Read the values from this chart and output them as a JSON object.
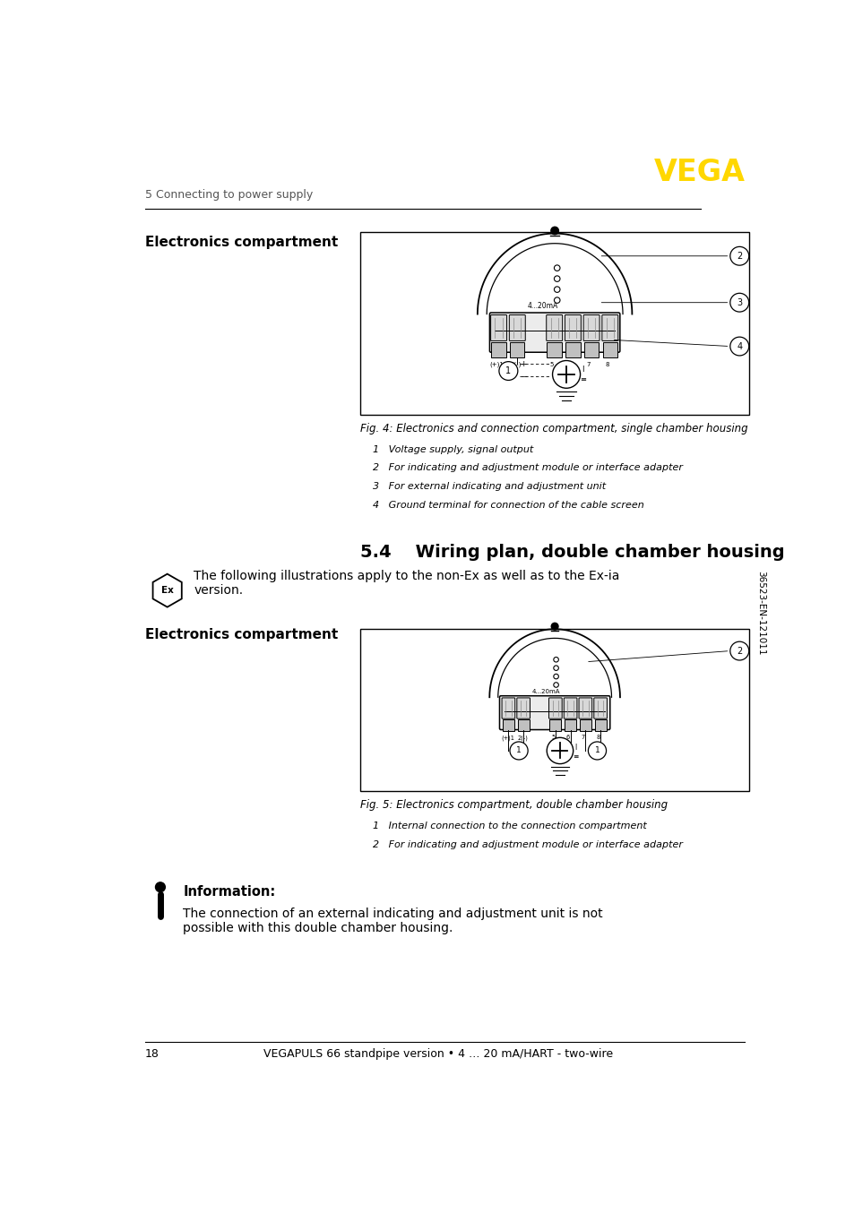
{
  "page_width": 9.54,
  "page_height": 13.54,
  "bg_color": "#ffffff",
  "header_text": "5 Connecting to power supply",
  "vega_color": "#FFD700",
  "vega_text": "VEGA",
  "footer_page": "18",
  "footer_center": "VEGAPULS 66 standpipe version • 4 … 20 mA/HART - two-wire",
  "section_title": "5.4    Wiring plan, double chamber housing",
  "section_intro": "The following illustrations apply to the non-Ex as well as to the Ex-ia\nversion.",
  "elec_label1": "Electronics compartment",
  "elec_label2": "Electronics compartment",
  "fig4_caption": "Fig. 4: Electronics and connection compartment, single chamber housing",
  "fig4_items": [
    "1   Voltage supply, signal output",
    "2   For indicating and adjustment module or interface adapter",
    "3   For external indicating and adjustment unit",
    "4   Ground terminal for connection of the cable screen"
  ],
  "fig5_caption": "Fig. 5: Electronics compartment, double chamber housing",
  "fig5_items": [
    "1   Internal connection to the connection compartment",
    "2   For indicating and adjustment module or interface adapter"
  ],
  "info_title": "Information:",
  "info_text": "The connection of an external indicating and adjustment unit is not\npossible with this double chamber housing.",
  "serial_text": "36523-EN-121011"
}
